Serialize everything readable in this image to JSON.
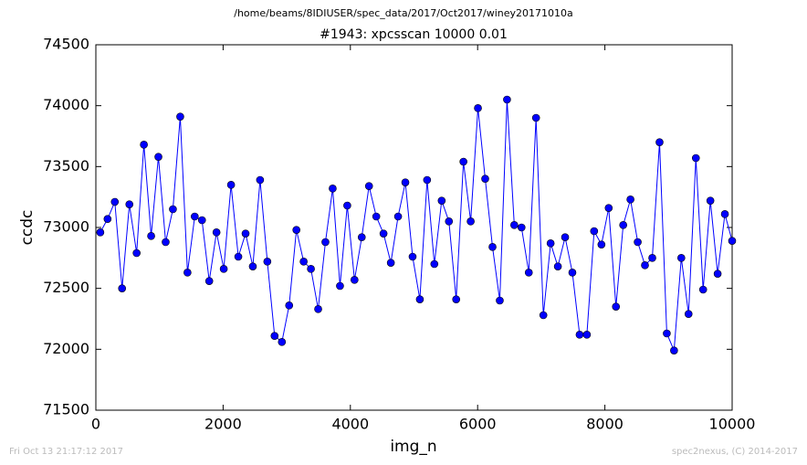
{
  "chart_data": {
    "type": "line",
    "suptitle": "/home/beams/8IDIUSER/spec_data/2017/Oct2017/winey20171010a",
    "title": "#1943: xpcsscan 10000 0.01",
    "xlabel": "img_n",
    "ylabel": "ccdc",
    "footer_left": "Fri Oct 13 21:17:12 2017",
    "footer_right": "spec2nexus, (C) 2014-2017",
    "color": "#0000ff",
    "x": [
      70,
      184,
      298,
      412,
      527,
      641,
      755,
      869,
      983,
      1097,
      1211,
      1326,
      1440,
      1554,
      1668,
      1782,
      1896,
      2010,
      2125,
      2239,
      2353,
      2467,
      2581,
      2695,
      2809,
      2924,
      3038,
      3152,
      3266,
      3380,
      3494,
      3608,
      3722,
      3837,
      3951,
      4065,
      4179,
      4293,
      4407,
      4521,
      4636,
      4750,
      4864,
      4978,
      5092,
      5206,
      5320,
      5435,
      5549,
      5663,
      5777,
      5891,
      6005,
      6119,
      6234,
      6348,
      6462,
      6576,
      6690,
      6804,
      6918,
      7033,
      7147,
      7261,
      7375,
      7489,
      7603,
      7717,
      7831,
      7946,
      8060,
      8174,
      8288,
      8402,
      8516,
      8630,
      8745,
      8859,
      8973,
      9087,
      9201,
      9315,
      9430,
      9544,
      9658,
      9772,
      9886,
      10000
    ],
    "values": [
      72960,
      73070,
      73210,
      72500,
      73190,
      72790,
      73680,
      72930,
      73580,
      72880,
      73150,
      73910,
      72630,
      73090,
      73060,
      72560,
      72960,
      72660,
      73350,
      72760,
      72950,
      72680,
      73390,
      72720,
      72110,
      72060,
      72360,
      72980,
      72720,
      72660,
      72330,
      72880,
      73320,
      72520,
      73180,
      72570,
      72920,
      73340,
      73090,
      72950,
      72710,
      73090,
      73370,
      72760,
      72410,
      73390,
      72700,
      73220,
      73050,
      72410,
      73540,
      73050,
      73980,
      73400,
      72840,
      72400,
      74050,
      73020,
      73000,
      72630,
      73900,
      72280,
      72870,
      72680,
      72920,
      72630,
      72120,
      72120,
      72970,
      72860,
      73160,
      72350,
      73020,
      73230,
      72880,
      72690,
      72750,
      73700,
      72130,
      71990,
      72750,
      72290,
      73570,
      72490,
      73220,
      72620,
      73110,
      72890
    ],
    "xlim": [
      0,
      10000
    ],
    "xticks": [
      0,
      2000,
      4000,
      6000,
      8000,
      10000
    ],
    "ylim": [
      71500,
      74500
    ],
    "yticks": [
      71500,
      72000,
      72500,
      73000,
      73500,
      74000,
      74500
    ]
  }
}
